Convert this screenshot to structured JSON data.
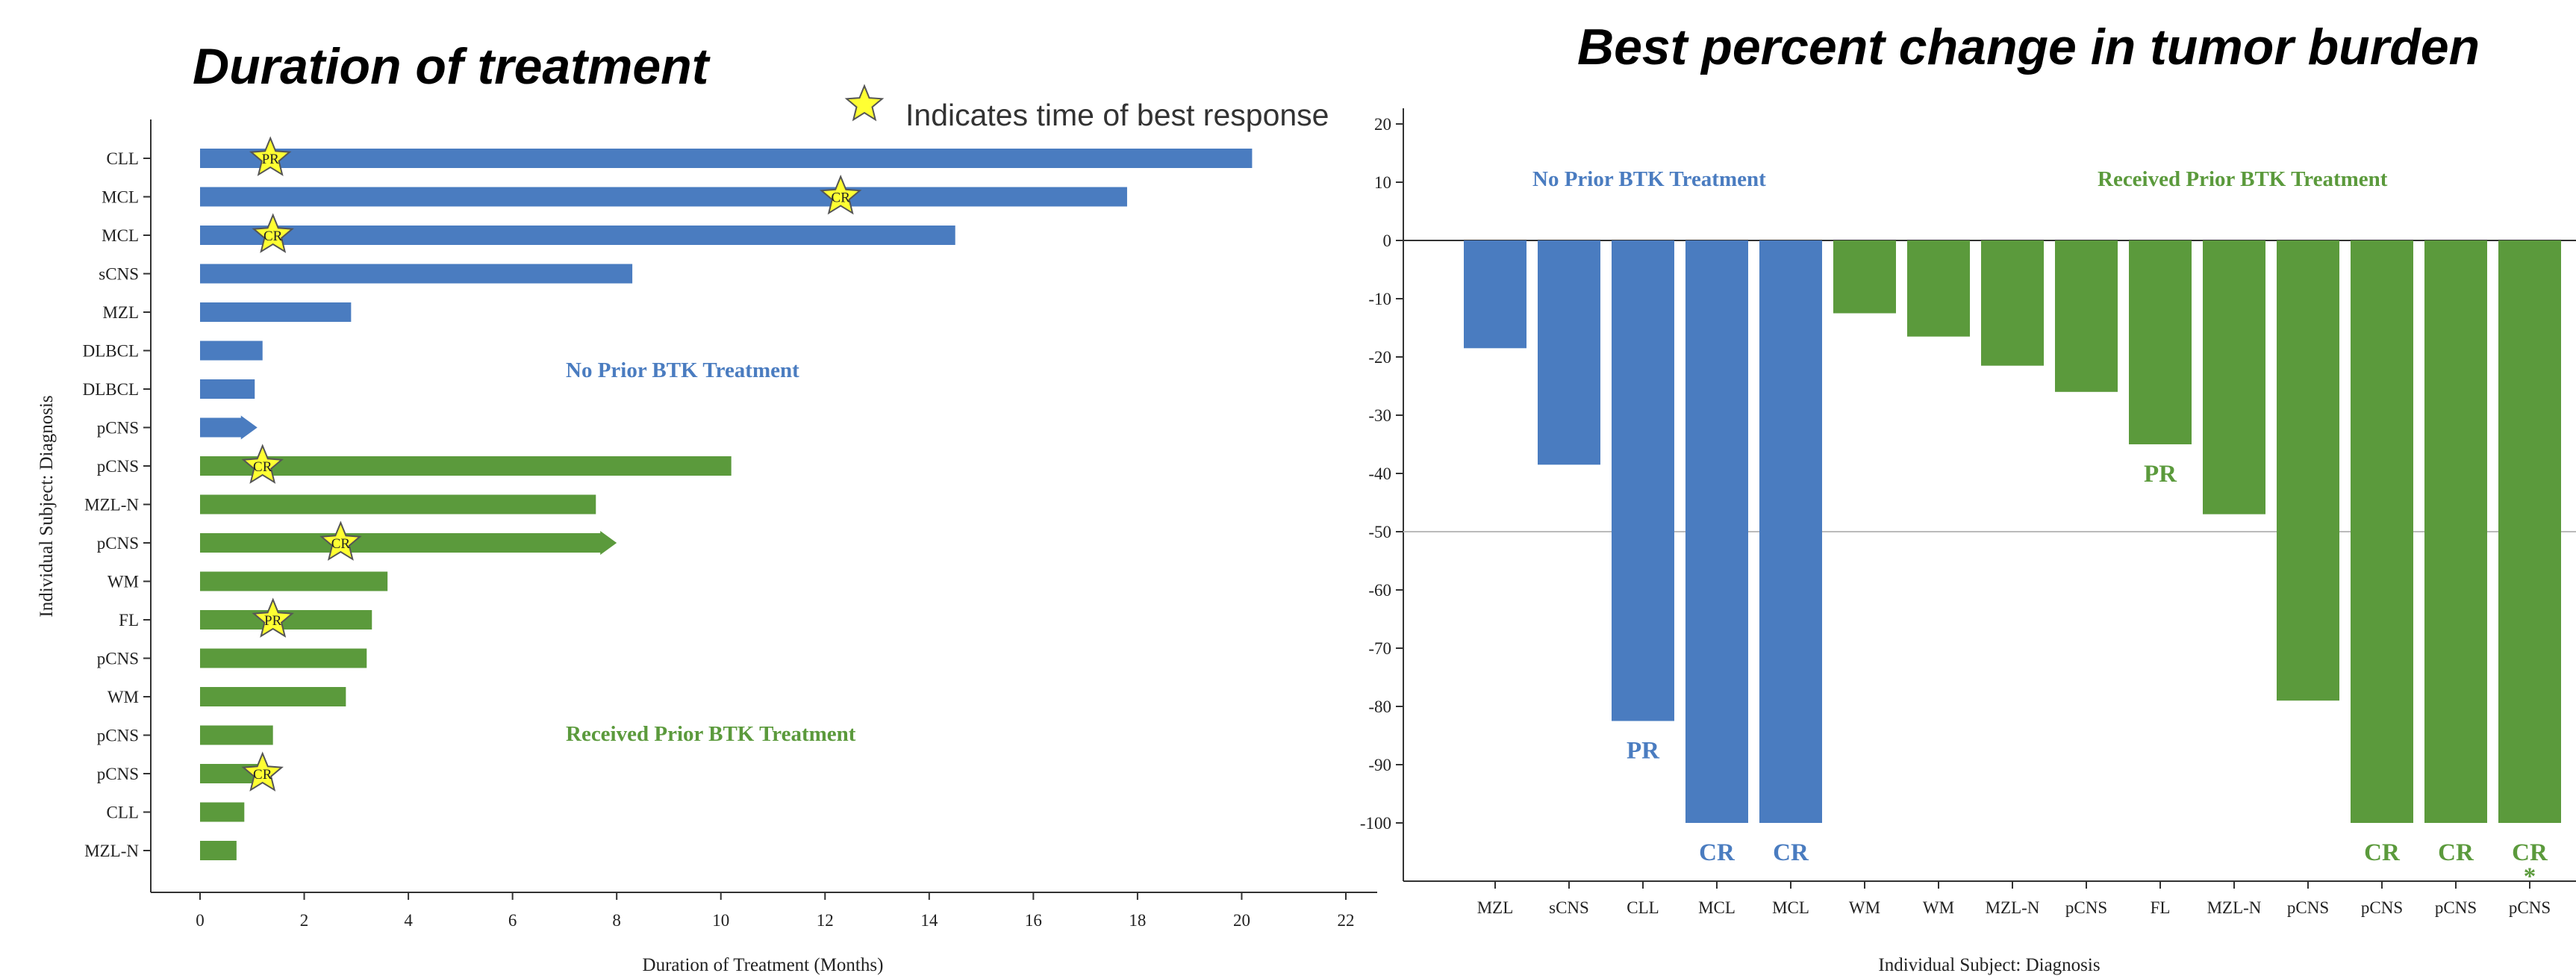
{
  "colors": {
    "no_prior": "#4a7cc0",
    "prior": "#5b9a3c",
    "star_fill": "#ffff33",
    "star_stroke": "#555555"
  },
  "legend": {
    "text": "Indicates time of best response",
    "icon": "star-icon"
  },
  "chart_data": [
    {
      "type": "bar",
      "orientation": "horizontal",
      "title": "Duration of treatment",
      "xlabel": "Duration of Treatment (Months)",
      "ylabel": "Individual Subject: Diagnosis",
      "xlim": [
        0,
        22
      ],
      "xticks": [
        0,
        2,
        4,
        6,
        8,
        10,
        12,
        14,
        16,
        18,
        20,
        22
      ],
      "categories": [
        "CLL",
        "MCL",
        "MCL",
        "sCNS",
        "MZL",
        "DLBCL",
        "DLBCL",
        "pCNS",
        "pCNS",
        "MZL-N",
        "pCNS",
        "WM",
        "FL",
        "pCNS",
        "WM",
        "pCNS",
        "pCNS",
        "CLL",
        "MZL-N"
      ],
      "values": [
        20.2,
        17.8,
        14.5,
        8.3,
        2.9,
        1.2,
        1.05,
        1.1,
        10.2,
        7.6,
        8.0,
        3.6,
        3.3,
        3.2,
        2.8,
        1.4,
        1.3,
        0.85,
        0.7
      ],
      "group": [
        "no_prior",
        "no_prior",
        "no_prior",
        "no_prior",
        "no_prior",
        "no_prior",
        "no_prior",
        "no_prior",
        "prior",
        "prior",
        "prior",
        "prior",
        "prior",
        "prior",
        "prior",
        "prior",
        "prior",
        "prior",
        "prior"
      ],
      "ongoing_arrow": [
        false,
        false,
        false,
        false,
        false,
        false,
        false,
        true,
        false,
        false,
        true,
        false,
        false,
        false,
        false,
        false,
        false,
        false,
        false
      ],
      "best_response_markers": [
        {
          "row": 0,
          "month": 1.35,
          "label": "PR"
        },
        {
          "row": 1,
          "month": 12.3,
          "label": "CR"
        },
        {
          "row": 2,
          "month": 1.4,
          "label": "CR"
        },
        {
          "row": 8,
          "month": 1.2,
          "label": "CR"
        },
        {
          "row": 10,
          "month": 2.7,
          "label": "CR"
        },
        {
          "row": 12,
          "month": 1.4,
          "label": "PR"
        },
        {
          "row": 16,
          "month": 1.2,
          "label": "CR"
        }
      ],
      "annotations": {
        "no_prior": "No Prior BTK Treatment",
        "prior": "Received Prior BTK Treatment"
      }
    },
    {
      "type": "bar",
      "title": "Best percent change in tumor burden",
      "xlabel": "Individual Subject: Diagnosis",
      "ylabel": "",
      "ylim": [
        -110,
        20
      ],
      "yticks": [
        20,
        10,
        0,
        -10,
        -20,
        -30,
        -40,
        -50,
        -60,
        -70,
        -80,
        -90,
        -100
      ],
      "reference_line": -50,
      "categories": [
        "MZL",
        "sCNS",
        "CLL",
        "MCL",
        "MCL",
        "WM",
        "WM",
        "MZL-N",
        "pCNS",
        "FL",
        "MZL-N",
        "pCNS",
        "pCNS",
        "pCNS",
        "pCNS"
      ],
      "values": [
        -18.5,
        -38.5,
        -82.5,
        -100,
        -100,
        -12.5,
        -16.5,
        -21.5,
        -26,
        -35,
        -47,
        -79,
        -100,
        -100,
        -100
      ],
      "group": [
        "no_prior",
        "no_prior",
        "no_prior",
        "no_prior",
        "no_prior",
        "prior",
        "prior",
        "prior",
        "prior",
        "prior",
        "prior",
        "prior",
        "prior",
        "prior",
        "prior"
      ],
      "bar_labels": [
        "",
        "",
        "PR",
        "CR",
        "CR",
        "",
        "",
        "",
        "",
        "PR",
        "",
        "",
        "CR",
        "CR",
        "CR"
      ],
      "footnote_marks": [
        "",
        "",
        "",
        "",
        "",
        "",
        "",
        "",
        "",
        "",
        "",
        "",
        "",
        "",
        "*"
      ],
      "annotations": {
        "no_prior": "No Prior BTK Treatment",
        "prior": "Received Prior BTK Treatment"
      }
    }
  ]
}
